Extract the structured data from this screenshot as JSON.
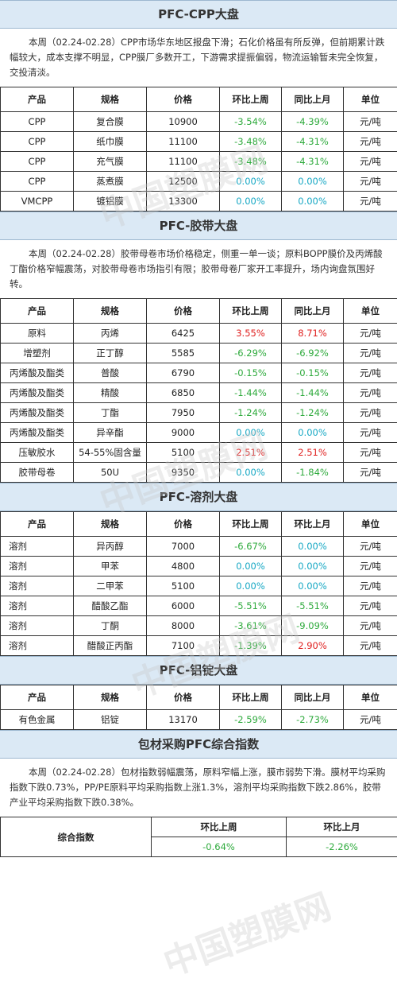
{
  "watermark": "中国塑膜网",
  "cpp": {
    "title": "PFC-CPP大盘",
    "para": "本周（02.24-02.28）CPP市场华东地区报盘下滑；石化价格虽有所反弹，但前期累计跌幅较大，成本支撑不明显，CPP膜厂多数开工，下游需求提振偏弱，物流运输暂未完全恢复，交投清淡。",
    "headers": [
      "产品",
      "规格",
      "价格",
      "环比上周",
      "同比上月",
      "单位"
    ],
    "rows": [
      [
        "CPP",
        "复合膜",
        "10900",
        "-3.54%",
        "-4.39%",
        "元/吨"
      ],
      [
        "CPP",
        "纸巾膜",
        "11100",
        "-3.48%",
        "-4.31%",
        "元/吨"
      ],
      [
        "CPP",
        "充气膜",
        "11100",
        "-3.48%",
        "-4.31%",
        "元/吨"
      ],
      [
        "CPP",
        "蒸煮膜",
        "12500",
        "0.00%",
        "0.00%",
        "元/吨"
      ],
      [
        "VMCPP",
        "镀铝膜",
        "13300",
        "0.00%",
        "0.00%",
        "元/吨"
      ]
    ]
  },
  "tape": {
    "title": "PFC-胶带大盘",
    "para": "本周（02.24-02.28）胶带母卷市场价格稳定，侧重一单一谈；原料BOPP膜价及丙烯酸丁酯价格窄幅震荡，对胶带母卷市场指引有限；胶带母卷厂家开工率提升，场内询盘氛围好转。",
    "headers": [
      "产品",
      "规格",
      "价格",
      "环比上周",
      "同比上月",
      "单位"
    ],
    "rows": [
      [
        "原料",
        "丙烯",
        "6425",
        "3.55%",
        "8.71%",
        "元/吨"
      ],
      [
        "增塑剂",
        "正丁醇",
        "5585",
        "-6.29%",
        "-6.92%",
        "元/吨"
      ],
      [
        "丙烯酸及酯类",
        "普酸",
        "6790",
        "-0.15%",
        "-0.15%",
        "元/吨"
      ],
      [
        "丙烯酸及酯类",
        "精酸",
        "6850",
        "-1.44%",
        "-1.44%",
        "元/吨"
      ],
      [
        "丙烯酸及酯类",
        "丁酯",
        "7950",
        "-1.24%",
        "-1.24%",
        "元/吨"
      ],
      [
        "丙烯酸及酯类",
        "异辛酯",
        "9000",
        "0.00%",
        "0.00%",
        "元/吨"
      ],
      [
        "压敏胶水",
        "54-55%固含量",
        "5100",
        "2.51%",
        "2.51%",
        "元/吨"
      ],
      [
        "胶带母卷",
        "50U",
        "9350",
        "0.00%",
        "-1.84%",
        "元/吨"
      ]
    ]
  },
  "solvent": {
    "title": "PFC-溶剂大盘",
    "headers": [
      "产品",
      "规格",
      "价格",
      "环比上周",
      "环比上月",
      "单位"
    ],
    "rows": [
      [
        "溶剂",
        "异丙醇",
        "7000",
        "-6.67%",
        "0.00%",
        "元/吨"
      ],
      [
        "溶剂",
        "甲苯",
        "4800",
        "0.00%",
        "0.00%",
        "元/吨"
      ],
      [
        "溶剂",
        "二甲苯",
        "5100",
        "0.00%",
        "0.00%",
        "元/吨"
      ],
      [
        "溶剂",
        "醋酸乙酯",
        "6000",
        "-5.51%",
        "-5.51%",
        "元/吨"
      ],
      [
        "溶剂",
        "丁酮",
        "8000",
        "-3.61%",
        "-9.09%",
        "元/吨"
      ],
      [
        "溶剂",
        "醋酸正丙酯",
        "7100",
        "-1.39%",
        "2.90%",
        "元/吨"
      ]
    ]
  },
  "aluminum": {
    "title": "PFC-铝锭大盘",
    "headers": [
      "产品",
      "规格",
      "价格",
      "环比上周",
      "同比上月",
      "单位"
    ],
    "rows": [
      [
        "有色金属",
        "铝锭",
        "13170",
        "-2.59%",
        "-2.73%",
        "元/吨"
      ]
    ]
  },
  "index": {
    "title": "包材采购PFC综合指数",
    "para": "本周（02.24-02.28）包材指数弱幅震荡，原料窄幅上涨，膜市弱势下滑。膜材平均采购指数下跌0.73%，PP/PE原料平均采购指数上涨1.3%，溶剂平均采购指数下跌2.86%，胶带产业平均采购指数下跌0.38%。",
    "label": "综合指数",
    "col1": "环比上周",
    "col2": "环比上月",
    "val1": "-0.64%",
    "val2": "-2.26%"
  },
  "colors": {
    "green": "#2eaa3c",
    "red": "#e0201f",
    "teal": "#17a8c4"
  }
}
